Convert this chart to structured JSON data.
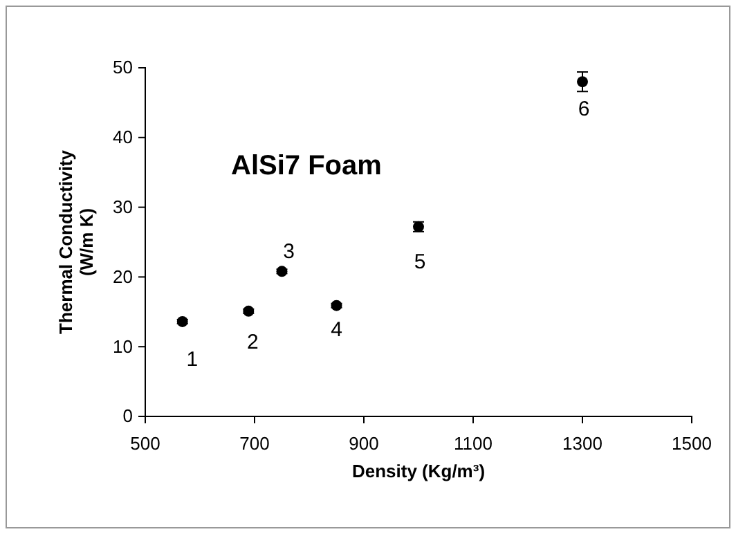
{
  "chart_data": {
    "type": "scatter",
    "xlabel": "Density (Kg/m³)",
    "ylabel": "Thermal Conductivity (W/m K)",
    "x": [
      568,
      689,
      750,
      850,
      1000,
      1300
    ],
    "values": [
      13.6,
      15.1,
      20.8,
      15.9,
      27.2,
      48.0
    ],
    "errors": [
      0.3,
      0.3,
      0.3,
      0.3,
      0.7,
      1.4
    ],
    "color": "#000000",
    "marker": "circle",
    "xlim": [
      500,
      1500
    ],
    "xticks": [
      500,
      700,
      900,
      1100,
      1300,
      1500
    ],
    "ylim": [
      0,
      50
    ],
    "yticks": [
      0,
      10,
      20,
      30,
      40,
      50
    ],
    "annotations": [
      "AlSi7 Foam",
      {
        "text": "1",
        "x": 568,
        "y": 13.6
      },
      {
        "text": "2",
        "x": 689,
        "y": 15.1
      },
      {
        "text": "3",
        "x": 750,
        "y": 20.8
      },
      {
        "text": "4",
        "x": 850,
        "y": 15.9
      },
      {
        "text": "5",
        "x": 1000,
        "y": 27.2
      },
      {
        "text": "6",
        "x": 1300,
        "y": 48.0
      }
    ]
  }
}
